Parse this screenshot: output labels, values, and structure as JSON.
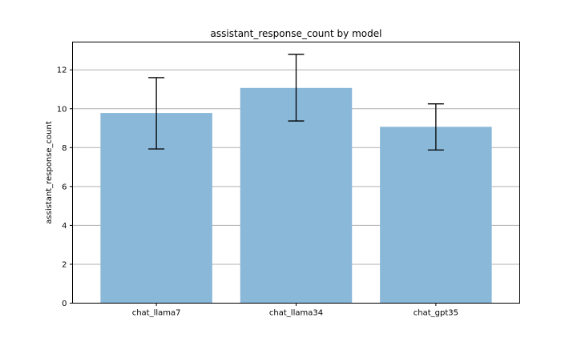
{
  "chart_data": {
    "type": "bar",
    "title": "assistant_response_count by model",
    "xlabel": "",
    "ylabel": "assistant_response_count",
    "categories": [
      "chat_llama7",
      "chat_llama34",
      "chat_gpt35"
    ],
    "values": [
      9.78,
      11.07,
      9.07
    ],
    "error_low": [
      7.93,
      9.37,
      7.88
    ],
    "error_high": [
      11.6,
      12.8,
      10.25
    ],
    "ylim": [
      0,
      13.43
    ],
    "yticks": [
      0,
      2,
      4,
      6,
      8,
      10,
      12
    ],
    "grid": "y",
    "bar_color": "#8ab8d9",
    "error_color": "#000000"
  }
}
